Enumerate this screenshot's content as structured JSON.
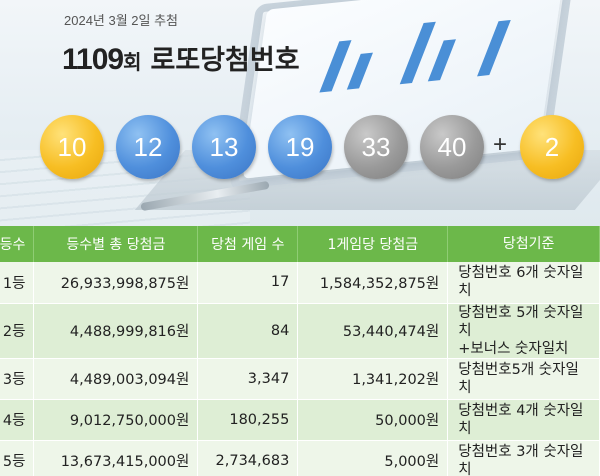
{
  "header": {
    "draw_date": "2024년 3월 2일 추첨",
    "round": "1109",
    "round_suffix": "회",
    "title": "로또당첨번호"
  },
  "numbers": {
    "main": [
      {
        "value": "10",
        "color": "yellow"
      },
      {
        "value": "12",
        "color": "blue"
      },
      {
        "value": "13",
        "color": "blue"
      },
      {
        "value": "19",
        "color": "blue"
      },
      {
        "value": "33",
        "color": "gray"
      },
      {
        "value": "40",
        "color": "gray"
      }
    ],
    "plus": "+",
    "bonus": {
      "value": "2",
      "color": "yellow"
    }
  },
  "colors": {
    "yellow": "#f7be23",
    "blue": "#4f8fdc",
    "gray": "#9a9a9a",
    "header_green": "#6cb84a"
  },
  "table": {
    "headers": [
      "등수",
      "등수별 총 당첨금",
      "당첨 게임 수",
      "1게임당 당첨금",
      "당첨기준"
    ],
    "rows": [
      {
        "rank": "1등",
        "total": "26,933,998,875원",
        "count": "17",
        "per_game": "1,584,352,875원",
        "criteria": "당첨번호 6개 숫자일치"
      },
      {
        "rank": "2등",
        "total": "4,488,999,816원",
        "count": "84",
        "per_game": "53,440,474원",
        "criteria": "당첨번호 5개 숫자일치",
        "criteria2": "+보너스 숫자일치"
      },
      {
        "rank": "3등",
        "total": "4,489,003,094원",
        "count": "3,347",
        "per_game": "1,341,202원",
        "criteria": "당첨번호5개 숫자일치"
      },
      {
        "rank": "4등",
        "total": "9,012,750,000원",
        "count": "180,255",
        "per_game": "50,000원",
        "criteria": "당첨번호 4개 숫자일치"
      },
      {
        "rank": "5등",
        "total": "13,673,415,000원",
        "count": "2,734,683",
        "per_game": "5,000원",
        "criteria": "당첨번호 3개 숫자일치"
      }
    ]
  }
}
